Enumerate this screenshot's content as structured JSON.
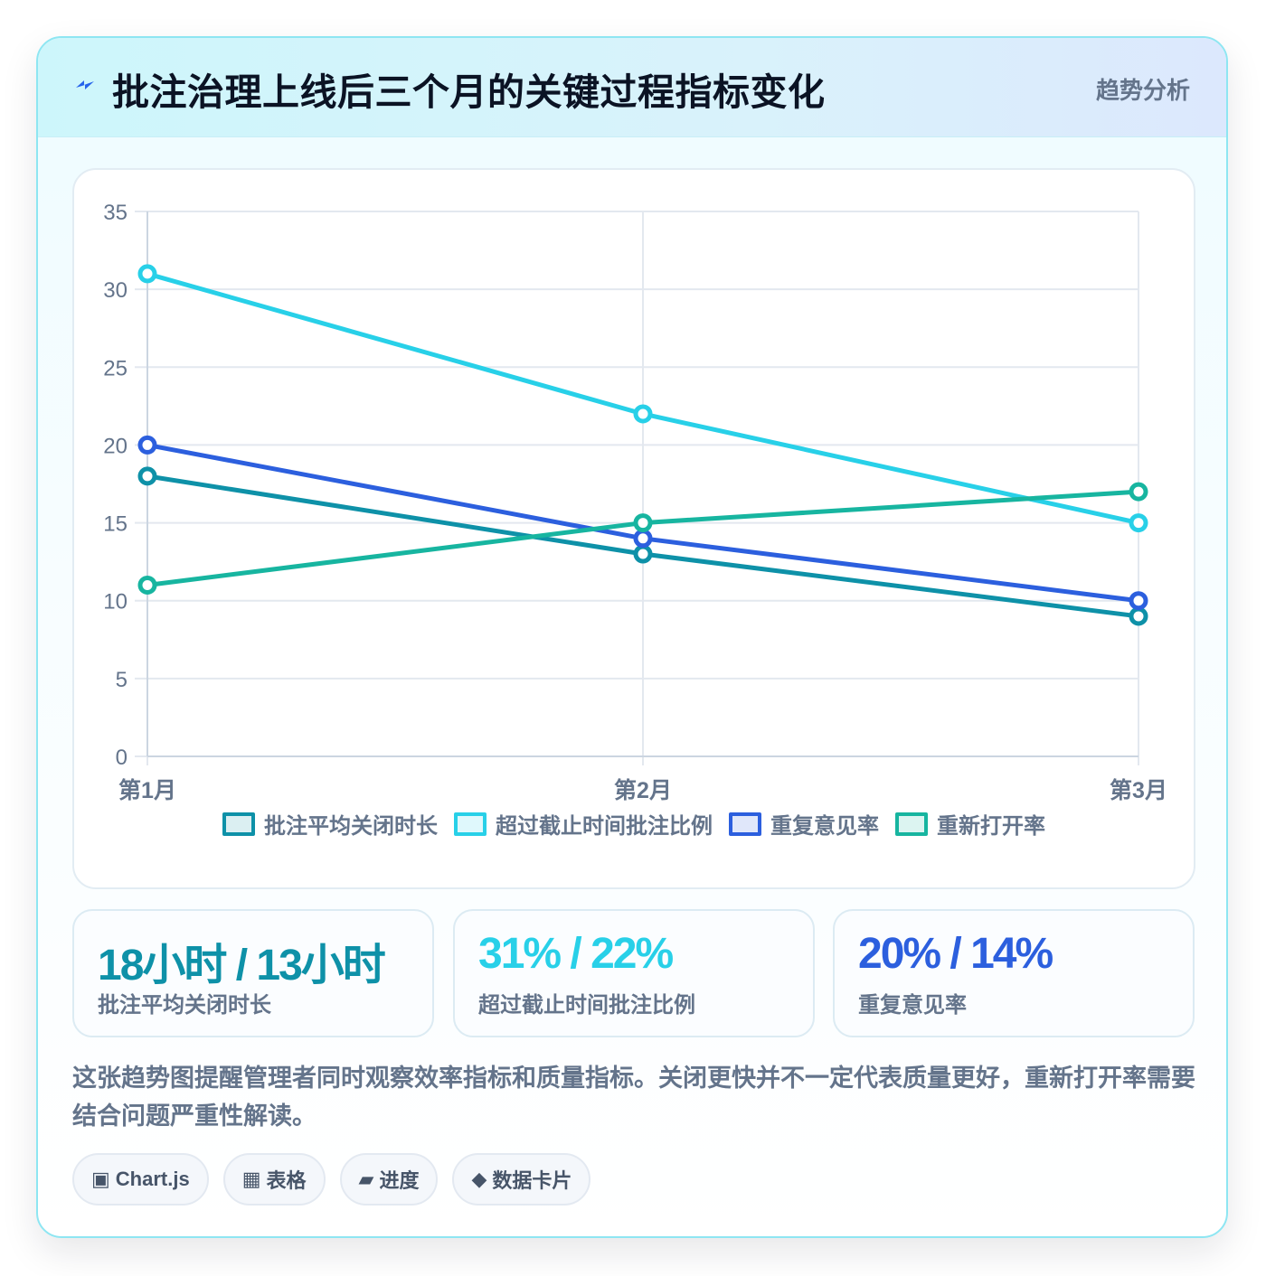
{
  "header": {
    "title": "批注治理上线后三个月的关键过程指标变化",
    "tag": "趋势分析",
    "icon": "bolt-icon"
  },
  "chart_data": {
    "type": "line",
    "categories": [
      "第1月",
      "第2月",
      "第3月"
    ],
    "series": [
      {
        "name": "批注平均关闭时长",
        "values": [
          18,
          13,
          9
        ],
        "color": "#0e91a8"
      },
      {
        "name": "超过截止时间批注比例",
        "values": [
          31,
          22,
          15
        ],
        "color": "#28d0e8"
      },
      {
        "name": "重复意见率",
        "values": [
          20,
          14,
          10
        ],
        "color": "#2c5fde"
      },
      {
        "name": "重新打开率",
        "values": [
          11,
          15,
          17
        ],
        "color": "#17b5a0"
      }
    ],
    "ylim": [
      0,
      35
    ],
    "yticks": [
      0,
      5,
      10,
      15,
      20,
      25,
      30,
      35
    ],
    "grid": true,
    "legend_position": "bottom"
  },
  "stats": [
    {
      "value": "18小时 / 13小时",
      "label": "批注平均关闭时长",
      "color": "#0e91a8"
    },
    {
      "value": "31% / 22%",
      "label": "超过截止时间批注比例",
      "color": "#28d0e8"
    },
    {
      "value": "20% / 14%",
      "label": "重复意见率",
      "color": "#2c5fde"
    }
  ],
  "note": "这张趋势图提醒管理者同时观察效率指标和质量指标。关闭更快并不一定代表质量更好，重新打开率需要结合问题严重性解读。",
  "chips": [
    {
      "icon": "▣",
      "label": "Chart.js"
    },
    {
      "icon": "▦",
      "label": "表格"
    },
    {
      "icon": "▰",
      "label": "进度"
    },
    {
      "icon": "◆",
      "label": "数据卡片"
    }
  ]
}
